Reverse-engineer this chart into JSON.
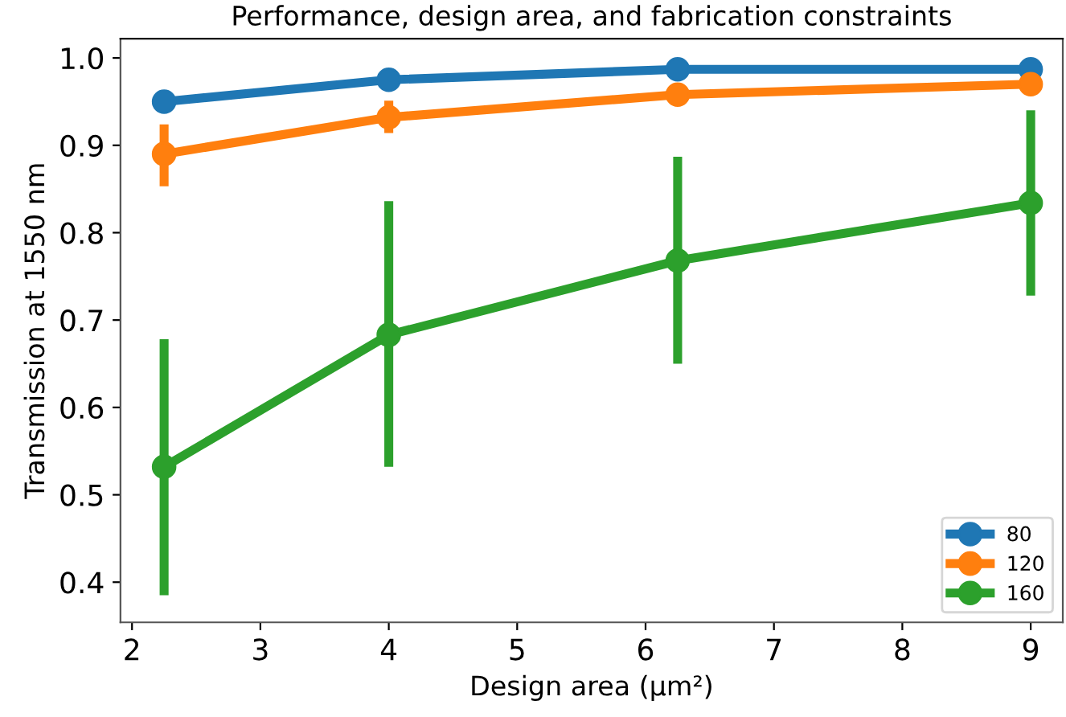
{
  "chart_data": {
    "type": "line",
    "title": "Performance, design area, and fabrication constraints",
    "xlabel": "Design area (μm²)",
    "ylabel": "Transmission at 1550 nm",
    "x": [
      2.25,
      4,
      6.25,
      9
    ],
    "series": [
      {
        "name": "80",
        "color": "#1f77b4",
        "values": [
          0.95,
          0.975,
          0.987,
          0.987
        ]
      },
      {
        "name": "120",
        "color": "#ff7f0e",
        "values": [
          0.89,
          0.932,
          0.958,
          0.97
        ],
        "errors": [
          [
            0.853,
            0.924
          ],
          [
            0.914,
            0.951
          ],
          null,
          null
        ]
      },
      {
        "name": "160",
        "color": "#2ca02c",
        "values": [
          0.532,
          0.683,
          0.768,
          0.834
        ],
        "errors": [
          [
            0.385,
            0.678
          ],
          [
            0.532,
            0.836
          ],
          [
            0.65,
            0.887
          ],
          [
            0.728,
            0.94
          ]
        ]
      }
    ],
    "xlim": [
      1.91,
      9.25
    ],
    "ylim": [
      0.354,
      1.022
    ],
    "xticks": [
      2,
      3,
      4,
      5,
      6,
      7,
      8,
      9
    ],
    "yticks": [
      {
        "value": 0.4,
        "label": "0.4"
      },
      {
        "value": 0.5,
        "label": "0.5"
      },
      {
        "value": 0.6,
        "label": "0.6"
      },
      {
        "value": 0.7,
        "label": "0.7"
      },
      {
        "value": 0.8,
        "label": "0.8"
      },
      {
        "value": 0.9,
        "label": "0.9"
      },
      {
        "value": 1.0,
        "label": "1.0"
      }
    ],
    "marker": "circle",
    "line_style": "solid",
    "legend": "bottom right",
    "grid": false
  }
}
